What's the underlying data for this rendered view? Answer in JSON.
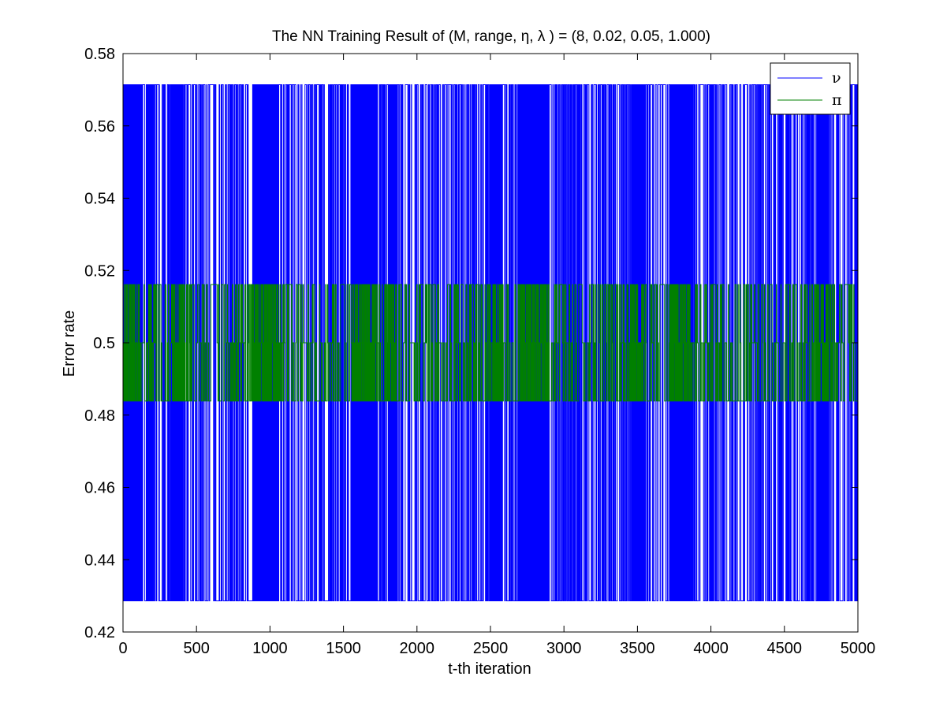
{
  "chart_data": {
    "type": "line",
    "title": "The NN Training Result of (M, range, η, λ ) = (8, 0.02, 0.05, 1.000)",
    "xlabel": "t-th iteration",
    "ylabel": "Error rate",
    "xlim": [
      0,
      5000
    ],
    "ylim": [
      0.42,
      0.58
    ],
    "xticks": [
      0,
      500,
      1000,
      1500,
      2000,
      2500,
      3000,
      3500,
      4000,
      4500,
      5000
    ],
    "xtick_labels": [
      "0",
      "500",
      "1000",
      "1500",
      "2000",
      "2500",
      "3000",
      "3500",
      "4000",
      "4500",
      "5000"
    ],
    "yticks": [
      0.42,
      0.44,
      0.46,
      0.48,
      0.5,
      0.52,
      0.54,
      0.56,
      0.58
    ],
    "ytick_labels": [
      "0.42",
      "0.44",
      "0.46",
      "0.48",
      "0.5",
      "0.52",
      "0.54",
      "0.56",
      "0.58"
    ],
    "grid": false,
    "legend_position": "top-right",
    "series": [
      {
        "name": "ν",
        "color": "#0000ff",
        "levels": [
          0.4286,
          0.5714
        ],
        "x": [
          0,
          5000
        ],
        "pattern": "rapid oscillation between 0.4286 and 0.5714 every iteration, with dense bursts and quieter stretches",
        "bursts": [
          [
            0,
            120
          ],
          [
            160,
            200
          ],
          [
            330,
            420
          ],
          [
            880,
            1060
          ],
          [
            1560,
            1720
          ],
          [
            1800,
            1860
          ],
          [
            2520,
            2580
          ],
          [
            2700,
            2900
          ],
          [
            3460,
            3540
          ],
          [
            3720,
            3860
          ],
          [
            4720,
            4800
          ]
        ]
      },
      {
        "name": "π",
        "color": "#008000",
        "levels": [
          0.4839,
          0.5,
          0.5161
        ],
        "x": [
          0,
          5000
        ],
        "pattern": "rapid oscillation between 0.4839, 0.5 and 0.5161, baseline at 0.4839",
        "bursts": [
          [
            0,
            120
          ],
          [
            160,
            200
          ],
          [
            330,
            420
          ],
          [
            880,
            1060
          ],
          [
            1560,
            1720
          ],
          [
            1800,
            1860
          ],
          [
            2520,
            2580
          ],
          [
            2700,
            2900
          ],
          [
            3460,
            3540
          ],
          [
            3720,
            3860
          ],
          [
            4720,
            4800
          ]
        ]
      }
    ]
  }
}
